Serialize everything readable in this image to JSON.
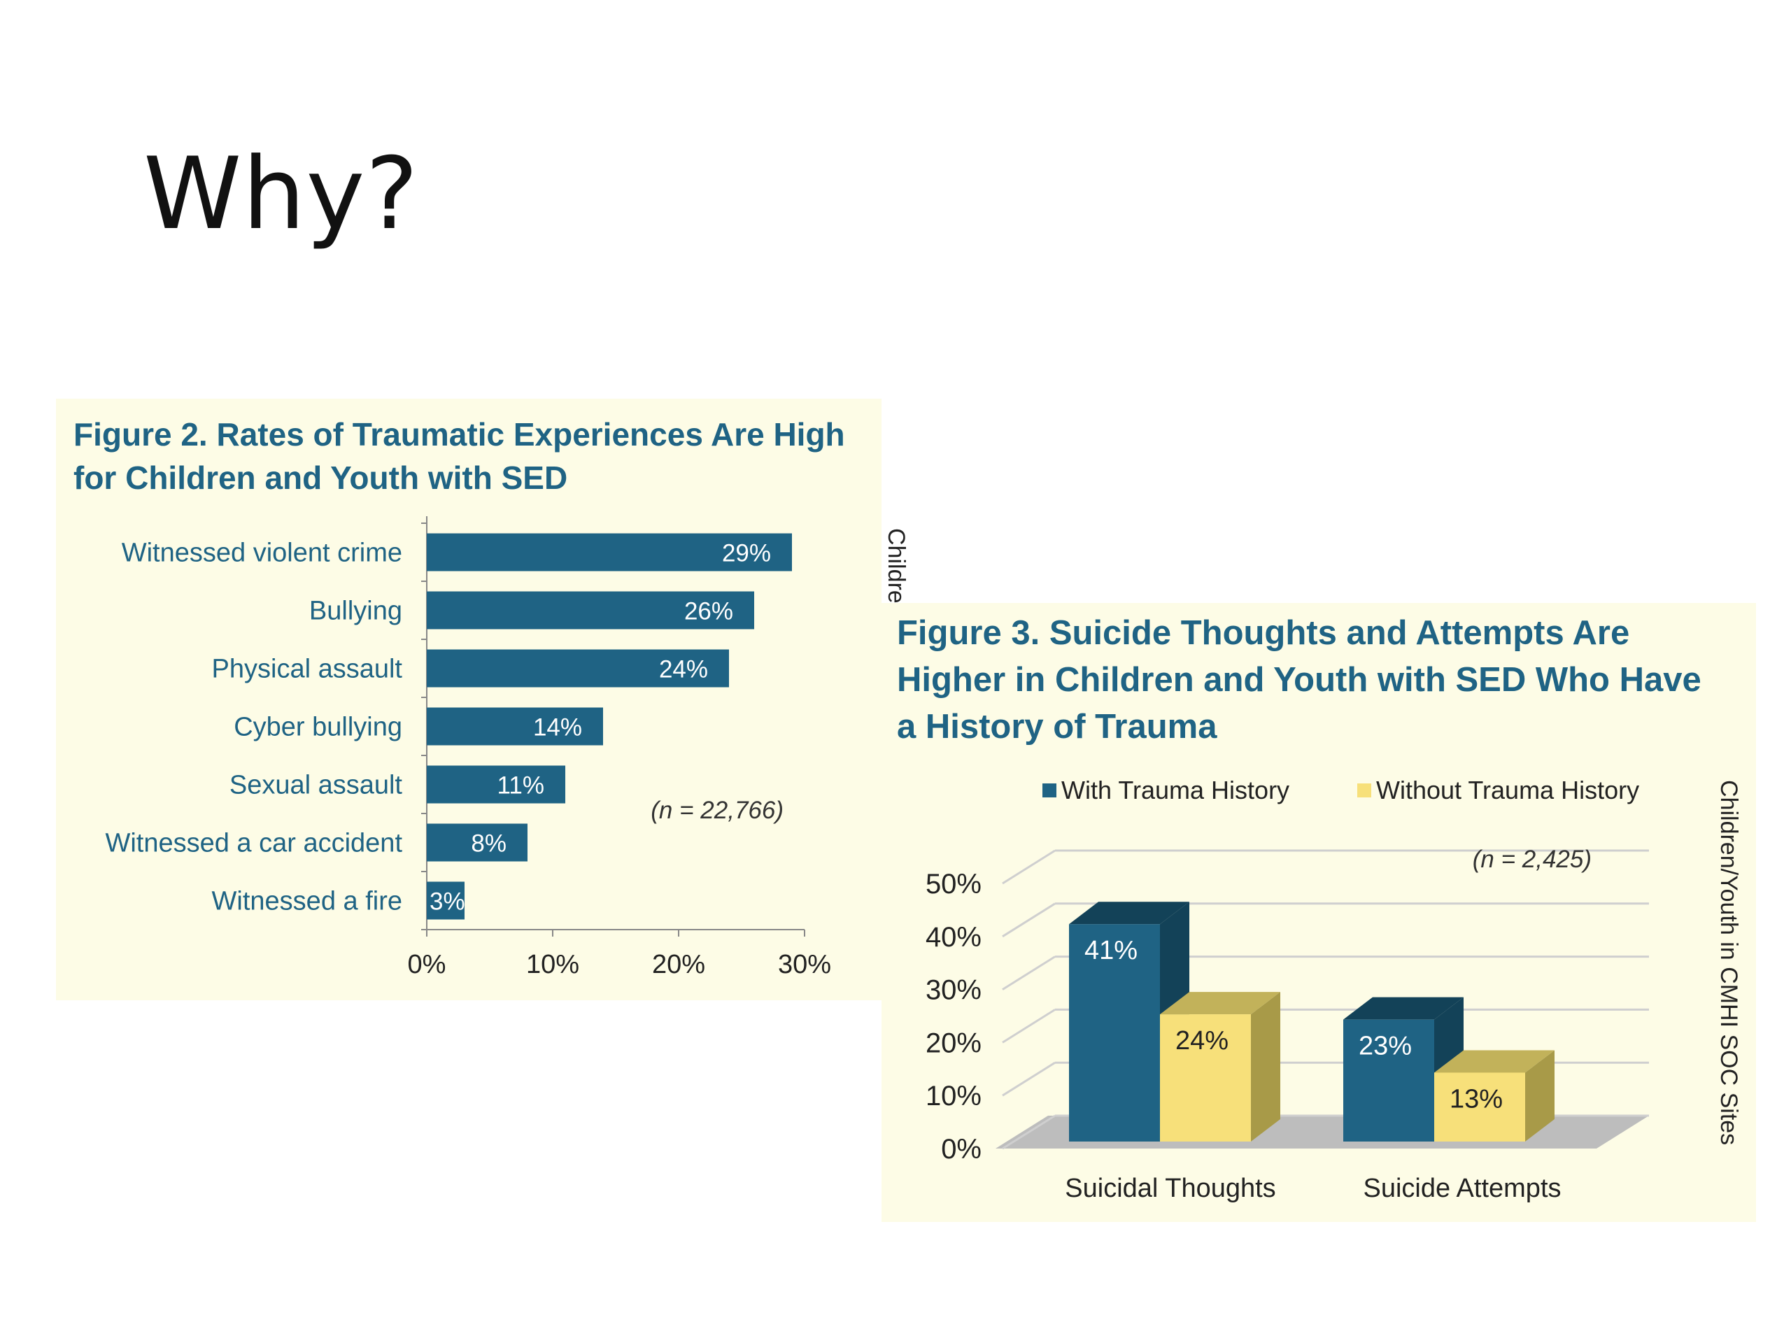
{
  "slide": {
    "title": "Why?"
  },
  "fig2": {
    "title_line1": "Figure 2. Rates of Traumatic Experiences Are High",
    "title_line2": "for Children and Youth with SED",
    "side_label": "Children/Youth in CMHI SOC Sites",
    "n_label": "(n = 22,766)"
  },
  "fig3": {
    "title_line1": "Figure 3. Suicide Thoughts and Attempts Are",
    "title_line2": "Higher in Children and Youth with SED Who Have",
    "title_line3": "a History of Trauma",
    "side_label": "Children/Youth in CMHI SOC Sites",
    "n_label": "(n = 2,425)"
  },
  "colors": {
    "teal": "#1f6384",
    "teal_dark": "#134258",
    "yellow": "#f7e07a",
    "yellow_side": "#a89a48",
    "yellow_top": "#c2b25a",
    "title_blue": "#1f6384",
    "panel_bg": "#fdfce6",
    "floor": "#bdbdbd"
  },
  "chart_data": [
    {
      "type": "bar",
      "orientation": "horizontal",
      "categories": [
        "Witnessed violent crime",
        "Bullying",
        "Physical assault",
        "Cyber bullying",
        "Sexual assault",
        "Witnessed a car accident",
        "Witnessed a fire"
      ],
      "values": [
        29,
        26,
        24,
        14,
        11,
        8,
        3
      ],
      "value_labels": [
        "29%",
        "26%",
        "24%",
        "14%",
        "11%",
        "8%",
        "3%"
      ],
      "xlim": [
        0,
        30
      ],
      "xticks": [
        "0%",
        "10%",
        "20%",
        "30%"
      ],
      "xtick_values": [
        0,
        10,
        20,
        30
      ],
      "grid": false
    },
    {
      "type": "bar",
      "style": "3d-clustered",
      "categories": [
        "Suicidal Thoughts",
        "Suicide Attempts"
      ],
      "series": [
        {
          "name": "With Trauma History",
          "values": [
            41,
            23
          ],
          "labels": [
            "41%",
            "23%"
          ]
        },
        {
          "name": "Without Trauma History",
          "values": [
            24,
            13
          ],
          "labels": [
            "24%",
            "13%"
          ]
        }
      ],
      "ylim": [
        0,
        50
      ],
      "yticks": [
        "0%",
        "10%",
        "20%",
        "30%",
        "40%",
        "50%"
      ],
      "ytick_values": [
        0,
        10,
        20,
        30,
        40,
        50
      ],
      "grid": true,
      "legend_position": "top"
    }
  ]
}
